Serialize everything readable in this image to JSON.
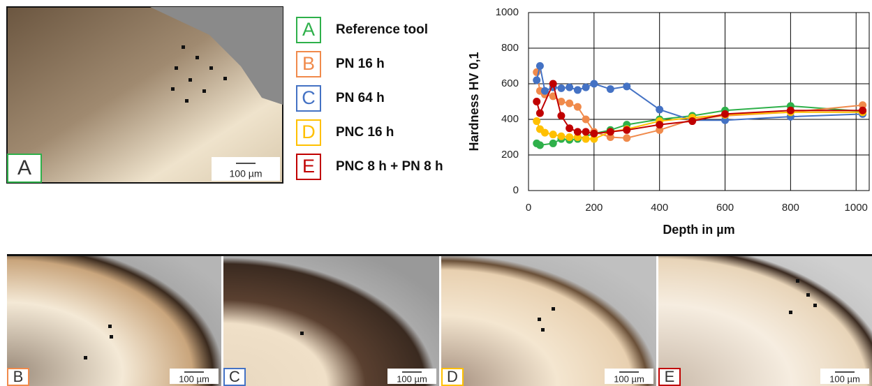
{
  "chart_data": {
    "type": "line",
    "x_label": "Depth in µm",
    "y_label": "Hardness HV 0,1",
    "xlim": [
      0,
      1040
    ],
    "ylim": [
      0,
      1000
    ],
    "xticks": [
      0,
      200,
      400,
      600,
      800,
      1000
    ],
    "yticks": [
      0,
      200,
      400,
      600,
      800,
      1000
    ],
    "grid": true,
    "series": [
      {
        "letter": "A",
        "name": "Reference tool",
        "color": "#2eb04a",
        "x": [
          25,
          35,
          75,
          100,
          125,
          150,
          200,
          250,
          300,
          400,
          500,
          600,
          800,
          1020
        ],
        "values": [
          265,
          255,
          265,
          290,
          285,
          290,
          320,
          340,
          370,
          400,
          420,
          450,
          475,
          445
        ]
      },
      {
        "letter": "B",
        "name": "PN 16 h",
        "color": "#f08a4b",
        "x": [
          25,
          35,
          50,
          75,
          100,
          125,
          150,
          175,
          200,
          250,
          300,
          400,
          500,
          600,
          800,
          1020
        ],
        "values": [
          665,
          560,
          540,
          530,
          500,
          490,
          470,
          400,
          330,
          300,
          295,
          340,
          400,
          420,
          440,
          480
        ]
      },
      {
        "letter": "C",
        "name": "PN 64 h",
        "color": "#4472c4",
        "x": [
          25,
          35,
          50,
          75,
          100,
          125,
          150,
          175,
          200,
          250,
          300,
          400,
          500,
          600,
          800,
          1020
        ],
        "values": [
          620,
          700,
          560,
          580,
          575,
          580,
          565,
          580,
          600,
          570,
          585,
          455,
          395,
          395,
          415,
          430
        ]
      },
      {
        "letter": "D",
        "name": "PNC 16 h",
        "color": "#ffc000",
        "x": [
          25,
          35,
          50,
          75,
          100,
          125,
          150,
          175,
          200,
          250,
          300,
          400,
          500,
          600,
          800,
          1020
        ],
        "values": [
          390,
          345,
          325,
          315,
          305,
          300,
          300,
          290,
          290,
          330,
          345,
          390,
          410,
          425,
          440,
          440
        ]
      },
      {
        "letter": "E",
        "name": "PNC 8 h + PN 8 h",
        "color": "#c00000",
        "x": [
          25,
          35,
          75,
          100,
          125,
          150,
          175,
          200,
          250,
          300,
          400,
          500,
          600,
          800,
          1020
        ],
        "values": [
          500,
          435,
          600,
          420,
          350,
          330,
          330,
          320,
          330,
          340,
          370,
          390,
          430,
          450,
          450
        ]
      }
    ]
  },
  "panels": [
    {
      "label": "A",
      "scale_bar": "100 µm",
      "color": "#2eb04a"
    },
    {
      "label": "B",
      "scale_bar": "100 µm",
      "color": "#f08a4b"
    },
    {
      "label": "C",
      "scale_bar": "100 µm",
      "color": "#4472c4"
    },
    {
      "label": "D",
      "scale_bar": "100 µm",
      "color": "#ffc000"
    },
    {
      "label": "E",
      "scale_bar": "100 µm",
      "color": "#c00000"
    }
  ]
}
